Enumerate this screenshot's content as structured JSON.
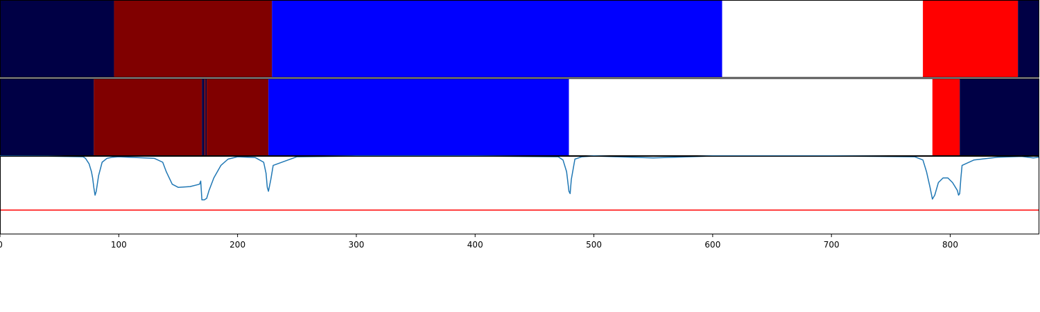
{
  "chart_data": [
    {
      "type": "heatmap",
      "title": "",
      "xlim": [
        0,
        875
      ],
      "segments": [
        {
          "start": 0,
          "end": 96,
          "color": "#000045"
        },
        {
          "start": 96,
          "end": 229,
          "color": "#800000"
        },
        {
          "start": 229,
          "end": 608,
          "color": "#0000ff"
        },
        {
          "start": 608,
          "end": 777,
          "color": "#ffffff"
        },
        {
          "start": 777,
          "end": 857,
          "color": "#ff0000"
        },
        {
          "start": 857,
          "end": 875,
          "color": "#000045"
        }
      ]
    },
    {
      "type": "heatmap",
      "title": "",
      "xlim": [
        0,
        875
      ],
      "segments": [
        {
          "start": 0,
          "end": 79,
          "color": "#000045"
        },
        {
          "start": 79,
          "end": 170,
          "color": "#800000"
        },
        {
          "start": 170,
          "end": 172,
          "color": "#000045"
        },
        {
          "start": 172,
          "end": 173,
          "color": "#800000"
        },
        {
          "start": 173,
          "end": 174,
          "color": "#000045"
        },
        {
          "start": 174,
          "end": 226,
          "color": "#800000"
        },
        {
          "start": 226,
          "end": 479,
          "color": "#0000ff"
        },
        {
          "start": 479,
          "end": 785,
          "color": "#ffffff"
        },
        {
          "start": 785,
          "end": 808,
          "color": "#ff0000"
        },
        {
          "start": 808,
          "end": 875,
          "color": "#000045"
        }
      ]
    },
    {
      "type": "line",
      "title": "",
      "xlabel": "",
      "ylabel": "",
      "xlim": [
        0,
        875
      ],
      "ylim": [
        0,
        1
      ],
      "xticks": [
        0,
        100,
        200,
        300,
        400,
        500,
        600,
        700,
        800
      ],
      "grid": false,
      "series": [
        {
          "color": "#1f77b4",
          "x": [
            0,
            40,
            70,
            72,
            75,
            77,
            78,
            79,
            80,
            81,
            83,
            86,
            90,
            95,
            100,
            130,
            137,
            140,
            145,
            150,
            160,
            168,
            169,
            170,
            171,
            172,
            174,
            176,
            180,
            186,
            192,
            200,
            215,
            222,
            224,
            225,
            226,
            228,
            230,
            250,
            300,
            400,
            470,
            474,
            477,
            479,
            480,
            481,
            484,
            490,
            500,
            520,
            550,
            580,
            600,
            700,
            770,
            777,
            780,
            783,
            785,
            787,
            790,
            794,
            798,
            802,
            806,
            807,
            808,
            809,
            810,
            820,
            840,
            860,
            870,
            875
          ],
          "y": [
            1,
            0.998,
            0.99,
            0.97,
            0.9,
            0.8,
            0.72,
            0.6,
            0.5,
            0.55,
            0.75,
            0.92,
            0.97,
            0.985,
            0.99,
            0.97,
            0.92,
            0.8,
            0.64,
            0.6,
            0.61,
            0.64,
            0.68,
            0.44,
            0.44,
            0.44,
            0.46,
            0.56,
            0.72,
            0.88,
            0.96,
            0.99,
            0.98,
            0.92,
            0.78,
            0.6,
            0.55,
            0.7,
            0.88,
            0.99,
            1,
            1,
            0.99,
            0.95,
            0.8,
            0.55,
            0.52,
            0.7,
            0.96,
            0.99,
            1,
            0.99,
            0.975,
            0.99,
            1,
            1,
            0.99,
            0.95,
            0.8,
            0.6,
            0.45,
            0.5,
            0.66,
            0.72,
            0.72,
            0.66,
            0.56,
            0.5,
            0.52,
            0.72,
            0.88,
            0.95,
            0.985,
            0.995,
            0.975,
            0.985
          ]
        },
        {
          "color": "#ff0000",
          "x": [
            0,
            875
          ],
          "y": [
            0.31,
            0.31
          ]
        }
      ]
    }
  ]
}
